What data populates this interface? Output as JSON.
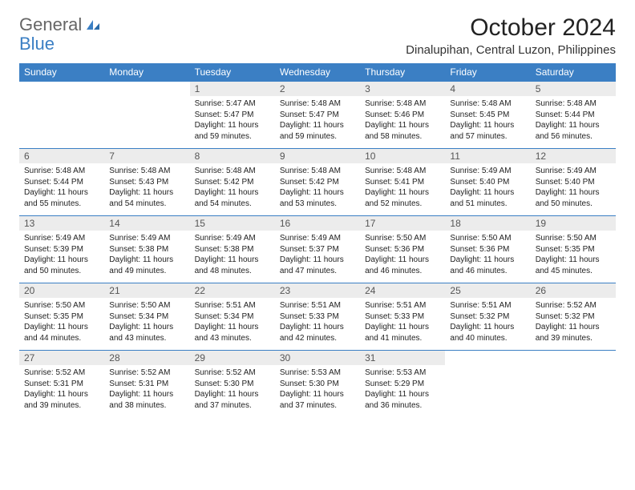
{
  "branding": {
    "word1": "General",
    "word2": "Blue",
    "logo_color": "#3b7fc4"
  },
  "header": {
    "title": "October 2024",
    "location": "Dinalupihan, Central Luzon, Philippines"
  },
  "colors": {
    "header_bg": "#3b7fc4",
    "header_text": "#ffffff",
    "daynum_bg": "#ececec",
    "border": "#3b7fc4",
    "body_text": "#222222"
  },
  "weekdays": [
    "Sunday",
    "Monday",
    "Tuesday",
    "Wednesday",
    "Thursday",
    "Friday",
    "Saturday"
  ],
  "weeks": [
    [
      null,
      null,
      {
        "n": "1",
        "sr": "5:47 AM",
        "ss": "5:47 PM",
        "dl": "11 hours and 59 minutes."
      },
      {
        "n": "2",
        "sr": "5:48 AM",
        "ss": "5:47 PM",
        "dl": "11 hours and 59 minutes."
      },
      {
        "n": "3",
        "sr": "5:48 AM",
        "ss": "5:46 PM",
        "dl": "11 hours and 58 minutes."
      },
      {
        "n": "4",
        "sr": "5:48 AM",
        "ss": "5:45 PM",
        "dl": "11 hours and 57 minutes."
      },
      {
        "n": "5",
        "sr": "5:48 AM",
        "ss": "5:44 PM",
        "dl": "11 hours and 56 minutes."
      }
    ],
    [
      {
        "n": "6",
        "sr": "5:48 AM",
        "ss": "5:44 PM",
        "dl": "11 hours and 55 minutes."
      },
      {
        "n": "7",
        "sr": "5:48 AM",
        "ss": "5:43 PM",
        "dl": "11 hours and 54 minutes."
      },
      {
        "n": "8",
        "sr": "5:48 AM",
        "ss": "5:42 PM",
        "dl": "11 hours and 54 minutes."
      },
      {
        "n": "9",
        "sr": "5:48 AM",
        "ss": "5:42 PM",
        "dl": "11 hours and 53 minutes."
      },
      {
        "n": "10",
        "sr": "5:48 AM",
        "ss": "5:41 PM",
        "dl": "11 hours and 52 minutes."
      },
      {
        "n": "11",
        "sr": "5:49 AM",
        "ss": "5:40 PM",
        "dl": "11 hours and 51 minutes."
      },
      {
        "n": "12",
        "sr": "5:49 AM",
        "ss": "5:40 PM",
        "dl": "11 hours and 50 minutes."
      }
    ],
    [
      {
        "n": "13",
        "sr": "5:49 AM",
        "ss": "5:39 PM",
        "dl": "11 hours and 50 minutes."
      },
      {
        "n": "14",
        "sr": "5:49 AM",
        "ss": "5:38 PM",
        "dl": "11 hours and 49 minutes."
      },
      {
        "n": "15",
        "sr": "5:49 AM",
        "ss": "5:38 PM",
        "dl": "11 hours and 48 minutes."
      },
      {
        "n": "16",
        "sr": "5:49 AM",
        "ss": "5:37 PM",
        "dl": "11 hours and 47 minutes."
      },
      {
        "n": "17",
        "sr": "5:50 AM",
        "ss": "5:36 PM",
        "dl": "11 hours and 46 minutes."
      },
      {
        "n": "18",
        "sr": "5:50 AM",
        "ss": "5:36 PM",
        "dl": "11 hours and 46 minutes."
      },
      {
        "n": "19",
        "sr": "5:50 AM",
        "ss": "5:35 PM",
        "dl": "11 hours and 45 minutes."
      }
    ],
    [
      {
        "n": "20",
        "sr": "5:50 AM",
        "ss": "5:35 PM",
        "dl": "11 hours and 44 minutes."
      },
      {
        "n": "21",
        "sr": "5:50 AM",
        "ss": "5:34 PM",
        "dl": "11 hours and 43 minutes."
      },
      {
        "n": "22",
        "sr": "5:51 AM",
        "ss": "5:34 PM",
        "dl": "11 hours and 43 minutes."
      },
      {
        "n": "23",
        "sr": "5:51 AM",
        "ss": "5:33 PM",
        "dl": "11 hours and 42 minutes."
      },
      {
        "n": "24",
        "sr": "5:51 AM",
        "ss": "5:33 PM",
        "dl": "11 hours and 41 minutes."
      },
      {
        "n": "25",
        "sr": "5:51 AM",
        "ss": "5:32 PM",
        "dl": "11 hours and 40 minutes."
      },
      {
        "n": "26",
        "sr": "5:52 AM",
        "ss": "5:32 PM",
        "dl": "11 hours and 39 minutes."
      }
    ],
    [
      {
        "n": "27",
        "sr": "5:52 AM",
        "ss": "5:31 PM",
        "dl": "11 hours and 39 minutes."
      },
      {
        "n": "28",
        "sr": "5:52 AM",
        "ss": "5:31 PM",
        "dl": "11 hours and 38 minutes."
      },
      {
        "n": "29",
        "sr": "5:52 AM",
        "ss": "5:30 PM",
        "dl": "11 hours and 37 minutes."
      },
      {
        "n": "30",
        "sr": "5:53 AM",
        "ss": "5:30 PM",
        "dl": "11 hours and 37 minutes."
      },
      {
        "n": "31",
        "sr": "5:53 AM",
        "ss": "5:29 PM",
        "dl": "11 hours and 36 minutes."
      },
      null,
      null
    ]
  ],
  "labels": {
    "sunrise": "Sunrise:",
    "sunset": "Sunset:",
    "daylight": "Daylight:"
  }
}
